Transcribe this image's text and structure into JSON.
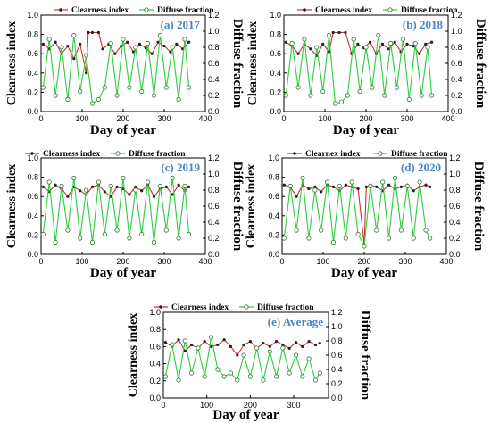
{
  "figure": {
    "x_axis_title": "Day of year",
    "y_left_title": "Clearness index",
    "y_right_title": "Diffuse fraction"
  },
  "legend": {
    "ci_label": "Clearness index",
    "df_label": "Diffuse fraction",
    "ci_label_2020": "Clearnex index"
  },
  "colors": {
    "clearness_line": "#c0392b",
    "clearness_marker": "#222222",
    "diffuse_line": "#2ecc40",
    "diffuse_marker": "#2e7d32",
    "panel_title": "#4a86c5"
  },
  "chart_data": [
    {
      "type": "line",
      "panel_label": "(a) 2017",
      "x_ticks": [
        0,
        100,
        200,
        300,
        400
      ],
      "y_left_ticks": [
        "0.0",
        "0.2",
        "0.4",
        "0.6",
        "0.8",
        "1.0"
      ],
      "y_right_ticks": [
        "0.0",
        "0.2",
        "0.4",
        "0.6",
        "0.8",
        "1.0",
        "1.2"
      ],
      "xlim": [
        0,
        400
      ],
      "ylim_left": [
        0,
        1.0
      ],
      "ylim_right": [
        0,
        1.2
      ],
      "series": [
        {
          "name": "Clearness index",
          "axis": "left",
          "x": [
            5,
            20,
            35,
            50,
            65,
            80,
            95,
            110,
            115,
            125,
            140,
            150,
            165,
            180,
            195,
            210,
            225,
            240,
            255,
            270,
            285,
            300,
            315,
            330,
            345,
            360
          ],
          "y": [
            0.7,
            0.65,
            0.72,
            0.6,
            0.68,
            0.55,
            0.7,
            0.4,
            0.82,
            0.82,
            0.82,
            0.65,
            0.7,
            0.6,
            0.68,
            0.72,
            0.62,
            0.7,
            0.66,
            0.6,
            0.72,
            0.68,
            0.62,
            0.7,
            0.65,
            0.72
          ]
        },
        {
          "name": "Diffuse fraction",
          "axis": "right",
          "x": [
            5,
            20,
            35,
            50,
            65,
            80,
            95,
            110,
            125,
            140,
            155,
            170,
            185,
            200,
            215,
            230,
            245,
            260,
            275,
            290,
            305,
            320,
            335,
            350,
            360
          ],
          "y": [
            0.3,
            0.9,
            0.2,
            0.8,
            0.15,
            0.95,
            0.25,
            0.7,
            0.1,
            0.15,
            0.3,
            0.85,
            0.2,
            0.9,
            0.3,
            0.8,
            0.25,
            0.85,
            0.2,
            0.95,
            0.3,
            0.8,
            0.15,
            0.9,
            0.3
          ]
        }
      ]
    },
    {
      "type": "line",
      "panel_label": "(b) 2018",
      "x_ticks": [
        0,
        100,
        200,
        300,
        400
      ],
      "y_left_ticks": [
        "0.0",
        "0.2",
        "0.4",
        "0.6",
        "0.8",
        "1.0"
      ],
      "y_right_ticks": [
        "0.0",
        "0.2",
        "0.4",
        "0.6",
        "0.8",
        "1.0",
        "1.2"
      ],
      "xlim": [
        0,
        400
      ],
      "ylim_left": [
        0,
        1.0
      ],
      "ylim_right": [
        0,
        1.2
      ],
      "series": [
        {
          "name": "Clearness index",
          "axis": "left",
          "x": [
            5,
            20,
            35,
            50,
            65,
            80,
            95,
            110,
            120,
            135,
            150,
            165,
            180,
            195,
            210,
            225,
            240,
            255,
            270,
            285,
            300,
            315,
            330,
            345,
            360
          ],
          "y": [
            0.72,
            0.68,
            0.6,
            0.7,
            0.65,
            0.58,
            0.7,
            0.62,
            0.82,
            0.82,
            0.82,
            0.6,
            0.7,
            0.66,
            0.72,
            0.6,
            0.7,
            0.65,
            0.72,
            0.62,
            0.7,
            0.68,
            0.6,
            0.7,
            0.72
          ]
        },
        {
          "name": "Diffuse fraction",
          "axis": "right",
          "x": [
            5,
            20,
            35,
            50,
            65,
            80,
            95,
            110,
            125,
            140,
            155,
            170,
            185,
            200,
            215,
            230,
            245,
            260,
            275,
            290,
            305,
            320,
            335,
            350,
            360
          ],
          "y": [
            0.2,
            0.85,
            0.3,
            0.9,
            0.2,
            0.8,
            0.25,
            0.95,
            0.1,
            0.12,
            0.2,
            0.9,
            0.25,
            0.8,
            0.3,
            0.95,
            0.2,
            0.85,
            0.3,
            0.9,
            0.15,
            0.85,
            0.2,
            0.8,
            0.2
          ]
        }
      ]
    },
    {
      "type": "line",
      "panel_label": "(c) 2019",
      "x_ticks": [
        0,
        100,
        200,
        300,
        400
      ],
      "y_left_ticks": [
        "0.0",
        "0.2",
        "0.4",
        "0.6",
        "0.8",
        "1.0"
      ],
      "y_right_ticks": [
        "0.0",
        "0.2",
        "0.4",
        "0.6",
        "0.8",
        "1.0",
        "1.2"
      ],
      "xlim": [
        0,
        400
      ],
      "ylim_left": [
        0,
        1.0
      ],
      "ylim_right": [
        0,
        1.2
      ],
      "series": [
        {
          "name": "Clearness index",
          "axis": "left",
          "x": [
            5,
            20,
            35,
            50,
            65,
            80,
            95,
            110,
            125,
            140,
            155,
            170,
            185,
            200,
            215,
            230,
            245,
            260,
            275,
            290,
            305,
            320,
            335,
            350,
            360
          ],
          "y": [
            0.7,
            0.65,
            0.72,
            0.68,
            0.6,
            0.7,
            0.66,
            0.62,
            0.7,
            0.72,
            0.65,
            0.6,
            0.7,
            0.68,
            0.62,
            0.7,
            0.66,
            0.72,
            0.6,
            0.68,
            0.7,
            0.62,
            0.72,
            0.66,
            0.7
          ]
        },
        {
          "name": "Diffuse fraction",
          "axis": "right",
          "x": [
            5,
            20,
            35,
            50,
            65,
            80,
            95,
            110,
            125,
            140,
            155,
            170,
            185,
            200,
            215,
            230,
            245,
            260,
            275,
            290,
            305,
            320,
            335,
            350,
            360
          ],
          "y": [
            0.25,
            0.9,
            0.15,
            0.85,
            0.3,
            0.95,
            0.2,
            0.8,
            0.15,
            0.9,
            0.25,
            0.85,
            0.3,
            0.95,
            0.2,
            0.8,
            0.25,
            0.9,
            0.15,
            0.85,
            0.3,
            0.95,
            0.2,
            0.85,
            0.25
          ]
        }
      ]
    },
    {
      "type": "line",
      "panel_label": "(d) 2020",
      "x_ticks": [
        0,
        100,
        200,
        300,
        400
      ],
      "y_left_ticks": [
        "0.0",
        "0.2",
        "0.4",
        "0.6",
        "0.8",
        "1.0"
      ],
      "y_right_ticks": [
        "0.0",
        "0.2",
        "0.4",
        "0.6",
        "0.8",
        "1.0",
        "1.2"
      ],
      "xlim": [
        0,
        400
      ],
      "ylim_left": [
        0,
        1.0
      ],
      "ylim_right": [
        0,
        1.2
      ],
      "series": [
        {
          "name": "Clearnex index",
          "axis": "left",
          "x": [
            5,
            20,
            35,
            50,
            65,
            80,
            95,
            110,
            125,
            140,
            155,
            170,
            185,
            200,
            205,
            215,
            230,
            245,
            260,
            275,
            290,
            305,
            320,
            335,
            350,
            360
          ],
          "y": [
            0.72,
            0.7,
            0.6,
            0.72,
            0.68,
            0.7,
            0.65,
            0.72,
            0.7,
            0.66,
            0.72,
            0.7,
            0.68,
            0.1,
            0.7,
            0.72,
            0.7,
            0.66,
            0.72,
            0.68,
            0.7,
            0.72,
            0.66,
            0.7,
            0.72,
            0.7
          ]
        },
        {
          "name": "Diffuse fraction",
          "axis": "right",
          "x": [
            5,
            20,
            35,
            50,
            65,
            80,
            95,
            110,
            125,
            140,
            155,
            170,
            185,
            200,
            215,
            230,
            245,
            260,
            275,
            290,
            305,
            320,
            335,
            350,
            360
          ],
          "y": [
            0.2,
            0.85,
            0.3,
            0.95,
            0.2,
            0.8,
            0.3,
            0.9,
            0.15,
            0.85,
            0.2,
            0.9,
            0.25,
            0.1,
            0.85,
            0.3,
            0.9,
            0.2,
            0.95,
            0.3,
            0.85,
            0.2,
            0.9,
            0.3,
            0.2
          ]
        }
      ]
    },
    {
      "type": "line",
      "panel_label": "(e) Average",
      "x_ticks": [
        0,
        100,
        200,
        300
      ],
      "y_left_ticks": [
        "0.0",
        "0.2",
        "0.4",
        "0.6",
        "0.8",
        "1.0"
      ],
      "y_right_ticks": [
        "0.0",
        "0.2",
        "0.4",
        "0.6",
        "0.8",
        "1.0",
        "1.2"
      ],
      "xlim": [
        0,
        380
      ],
      "ylim_left": [
        0,
        1.0
      ],
      "ylim_right": [
        0,
        1.2
      ],
      "series": [
        {
          "name": "Clearness index",
          "axis": "left",
          "x": [
            5,
            20,
            35,
            50,
            65,
            80,
            95,
            110,
            125,
            140,
            155,
            170,
            185,
            200,
            215,
            230,
            245,
            260,
            275,
            290,
            305,
            320,
            335,
            350,
            360
          ],
          "y": [
            0.65,
            0.6,
            0.68,
            0.55,
            0.62,
            0.58,
            0.66,
            0.6,
            0.62,
            0.68,
            0.6,
            0.5,
            0.62,
            0.66,
            0.58,
            0.64,
            0.6,
            0.66,
            0.62,
            0.58,
            0.65,
            0.6,
            0.66,
            0.62,
            0.64
          ]
        },
        {
          "name": "Diffuse fraction",
          "axis": "right",
          "x": [
            5,
            20,
            35,
            50,
            65,
            80,
            95,
            110,
            125,
            140,
            155,
            170,
            185,
            200,
            215,
            230,
            245,
            260,
            275,
            290,
            305,
            320,
            335,
            350,
            360
          ],
          "y": [
            0.3,
            0.75,
            0.25,
            0.8,
            0.35,
            0.7,
            0.3,
            0.85,
            0.4,
            0.3,
            0.35,
            0.25,
            0.6,
            0.3,
            0.7,
            0.25,
            0.65,
            0.3,
            0.7,
            0.35,
            0.6,
            0.3,
            0.55,
            0.25,
            0.35
          ]
        }
      ]
    }
  ]
}
